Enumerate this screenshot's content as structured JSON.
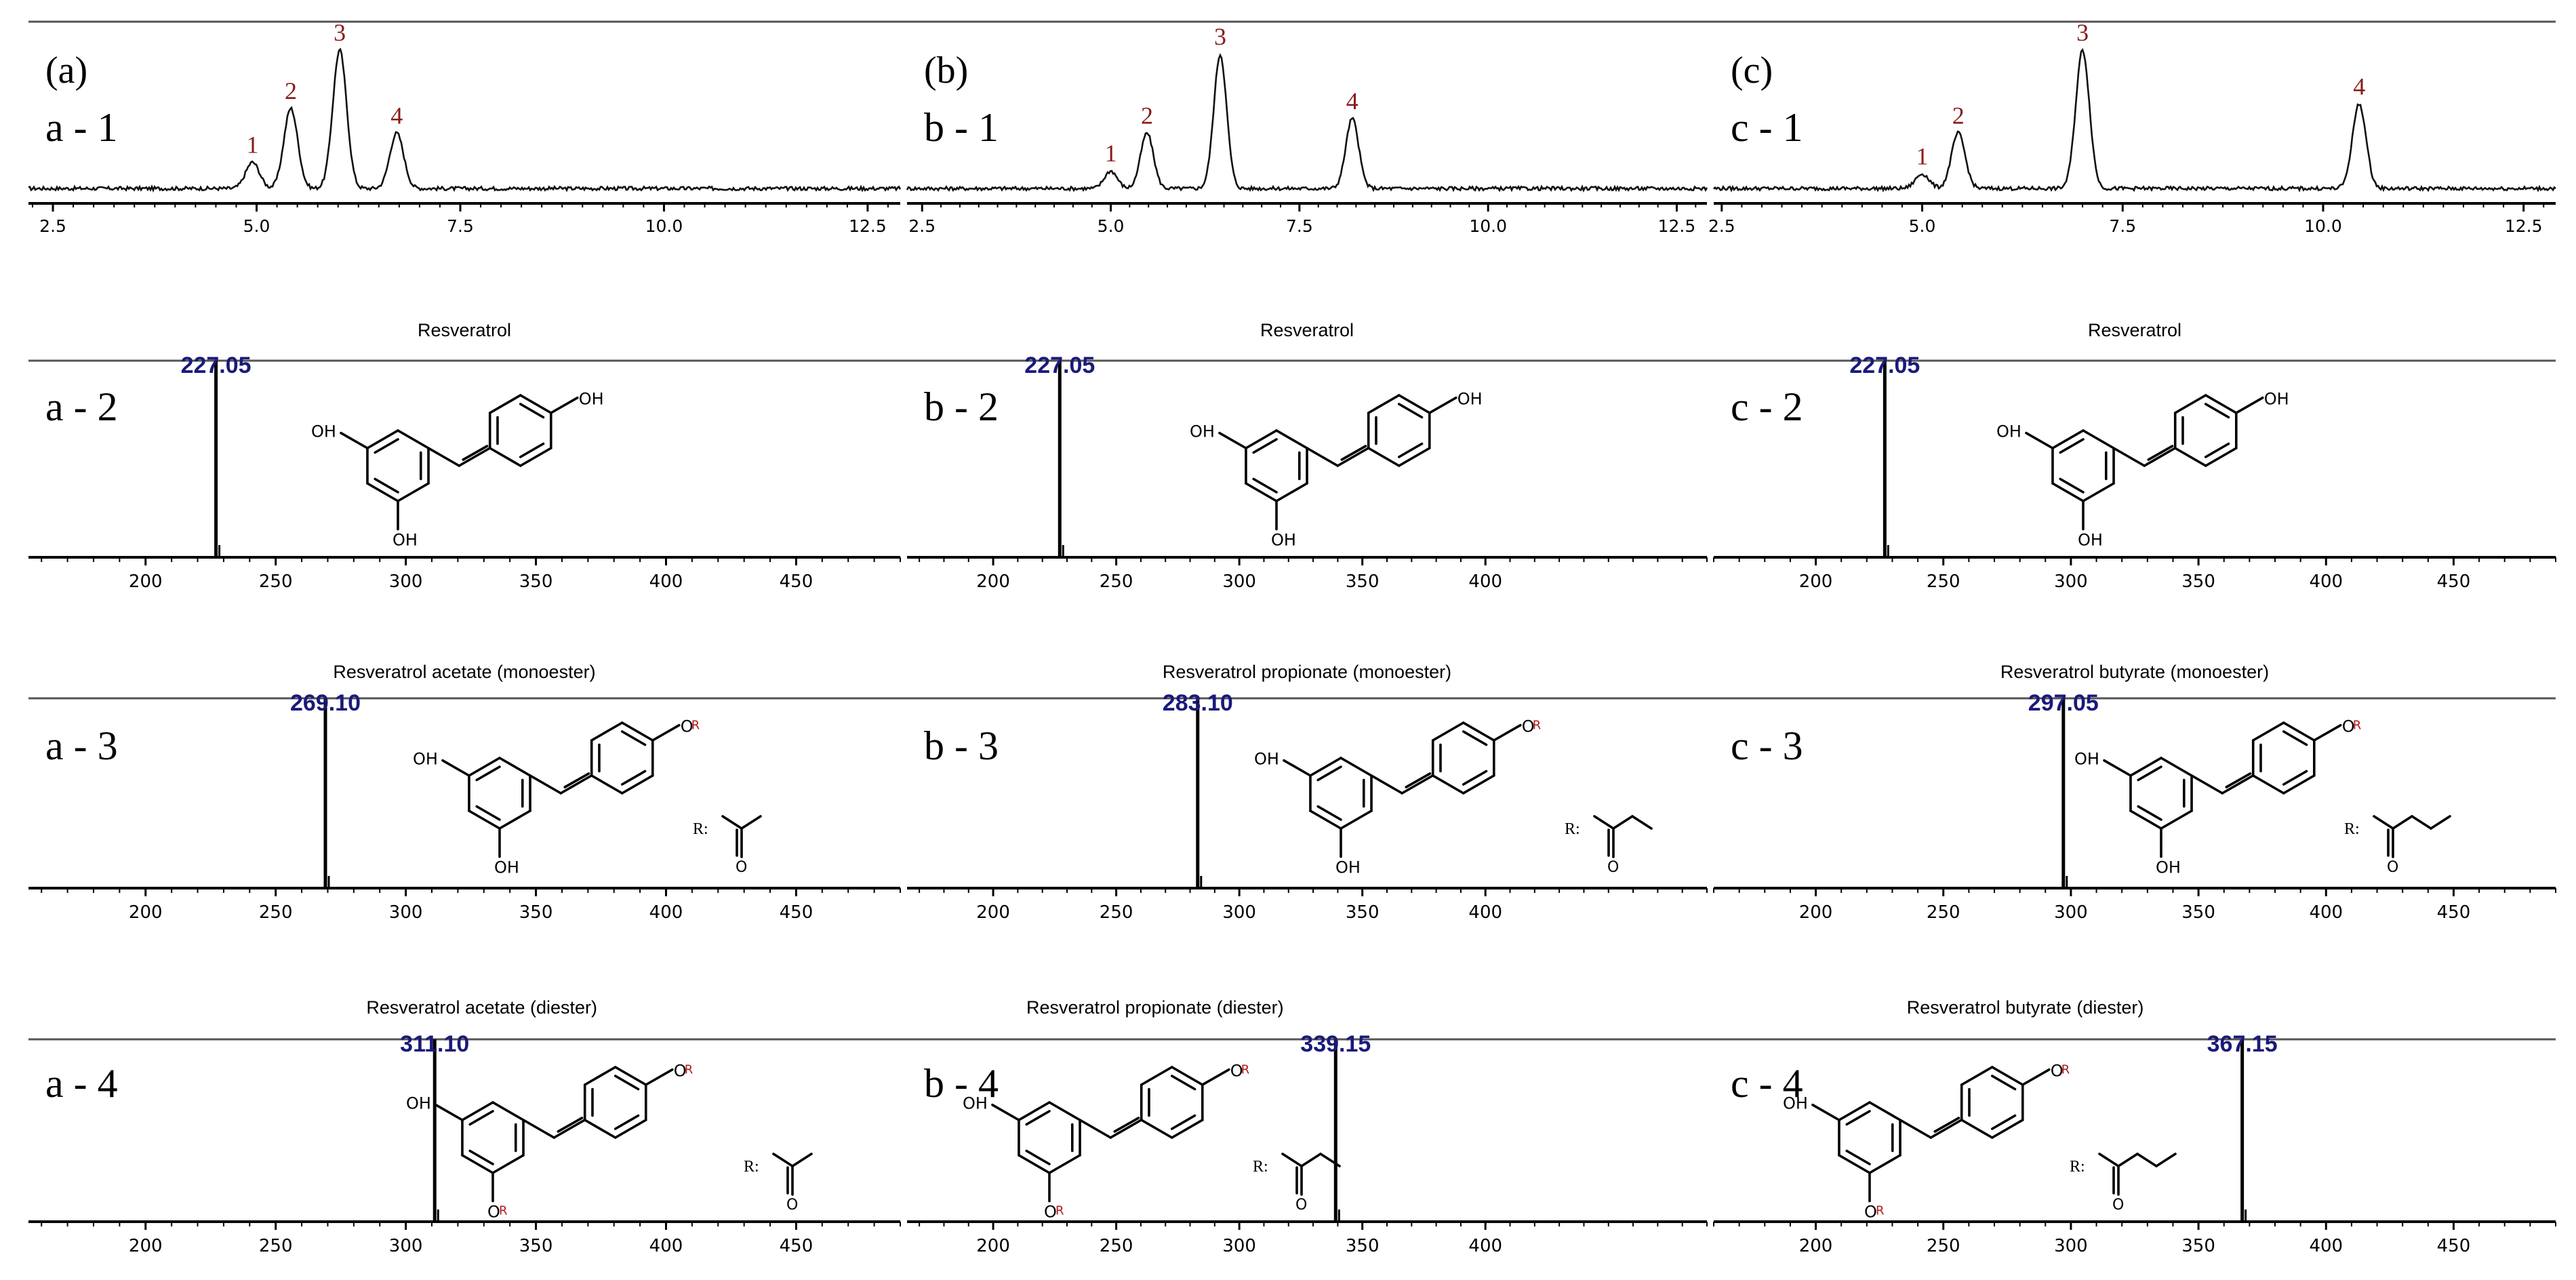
{
  "chart_data": [
    {
      "type": "line",
      "panel": "(a)",
      "sublabel": "a - 1",
      "x_ticks": [
        "2.5",
        "5.0",
        "7.5",
        "10.0",
        "12.5"
      ],
      "xlim": [
        2.2,
        12.9
      ],
      "peaks": [
        {
          "label": "1",
          "x": 4.95,
          "h": 0.18
        },
        {
          "label": "2",
          "x": 5.42,
          "h": 0.55
        },
        {
          "label": "3",
          "x": 6.02,
          "h": 0.95
        },
        {
          "label": "4",
          "x": 6.72,
          "h": 0.38
        }
      ]
    },
    {
      "type": "line",
      "panel": "(b)",
      "sublabel": "b - 1",
      "x_ticks": [
        "2.5",
        "5.0",
        "7.5",
        "10.0",
        "12.5"
      ],
      "xlim": [
        2.3,
        12.9
      ],
      "peaks": [
        {
          "label": "1",
          "x": 5.0,
          "h": 0.12
        },
        {
          "label": "2",
          "x": 5.48,
          "h": 0.38
        },
        {
          "label": "3",
          "x": 6.45,
          "h": 0.92
        },
        {
          "label": "4",
          "x": 8.2,
          "h": 0.48
        }
      ]
    },
    {
      "type": "line",
      "panel": "(c)",
      "sublabel": "c - 1",
      "x_ticks": [
        "2.5",
        "5.0",
        "7.5",
        "10.0",
        "12.5"
      ],
      "xlim": [
        2.4,
        12.9
      ],
      "peaks": [
        {
          "label": "1",
          "x": 5.0,
          "h": 0.1
        },
        {
          "label": "2",
          "x": 5.45,
          "h": 0.38
        },
        {
          "label": "3",
          "x": 7.0,
          "h": 0.95
        },
        {
          "label": "4",
          "x": 10.45,
          "h": 0.58
        }
      ]
    },
    {
      "type": "bar",
      "sublabel": "a - 2",
      "title": "Resveratrol",
      "mz": "227.05",
      "x": [
        227.05
      ],
      "x_ticks": [
        "200",
        "250",
        "300",
        "350",
        "400",
        "450"
      ],
      "xlim": [
        155,
        490
      ],
      "substituent": "none",
      "ester": "none"
    },
    {
      "type": "bar",
      "sublabel": "b - 2",
      "title": "Resveratrol",
      "mz": "227.05",
      "x": [
        227.05
      ],
      "x_ticks": [
        "200",
        "250",
        "300",
        "350",
        "400"
      ],
      "xlim": [
        165,
        490
      ],
      "substituent": "none",
      "ester": "none"
    },
    {
      "type": "bar",
      "sublabel": "c - 2",
      "title": "Resveratrol",
      "mz": "227.05",
      "x": [
        227.05
      ],
      "x_ticks": [
        "200",
        "250",
        "300",
        "350",
        "400",
        "450"
      ],
      "xlim": [
        160,
        490
      ],
      "substituent": "none",
      "ester": "none"
    },
    {
      "type": "bar",
      "sublabel": "a - 3",
      "title": "Resveratrol acetate (monoester)",
      "mz": "269.10",
      "x": [
        269.1
      ],
      "x_ticks": [
        "200",
        "250",
        "300",
        "350",
        "400",
        "450"
      ],
      "xlim": [
        155,
        490
      ],
      "substituent": "R:",
      "ester": "acetyl",
      "r_sites": 1
    },
    {
      "type": "bar",
      "sublabel": "b - 3",
      "title": "Resveratrol propionate (monoester)",
      "mz": "283.10",
      "x": [
        283.1
      ],
      "x_ticks": [
        "200",
        "250",
        "300",
        "350",
        "400"
      ],
      "xlim": [
        165,
        490
      ],
      "substituent": "R:",
      "ester": "propionyl",
      "r_sites": 1
    },
    {
      "type": "bar",
      "sublabel": "c - 3",
      "title": "Resveratrol butyrate (monoester)",
      "mz": "297.05",
      "x": [
        297.05
      ],
      "x_ticks": [
        "200",
        "250",
        "300",
        "350",
        "400",
        "450"
      ],
      "xlim": [
        160,
        490
      ],
      "substituent": "R:",
      "ester": "butyryl",
      "r_sites": 1
    },
    {
      "type": "bar",
      "sublabel": "a - 4",
      "title": "Resveratrol acetate (diester)",
      "mz": "311.10",
      "x": [
        311.1
      ],
      "x_ticks": [
        "200",
        "250",
        "300",
        "350",
        "400",
        "450"
      ],
      "xlim": [
        155,
        490
      ],
      "substituent": "R:",
      "ester": "acetyl",
      "r_sites": 2
    },
    {
      "type": "bar",
      "sublabel": "b - 4",
      "title": "Resveratrol propionate (diester)",
      "mz": "339.15",
      "x": [
        339.15
      ],
      "x_ticks": [
        "200",
        "250",
        "300",
        "350",
        "400"
      ],
      "xlim": [
        165,
        490
      ],
      "substituent": "R:",
      "ester": "propionyl",
      "r_sites": 2
    },
    {
      "type": "bar",
      "sublabel": "c - 4",
      "title": "Resveratrol butyrate (diester)",
      "mz": "367.15",
      "x": [
        367.15
      ],
      "x_ticks": [
        "200",
        "250",
        "300",
        "350",
        "400",
        "450"
      ],
      "xlim": [
        160,
        490
      ],
      "substituent": "R:",
      "ester": "butyryl",
      "r_sites": 2
    }
  ],
  "atoms": {
    "oh": "OH",
    "o": "O",
    "r": "R"
  }
}
